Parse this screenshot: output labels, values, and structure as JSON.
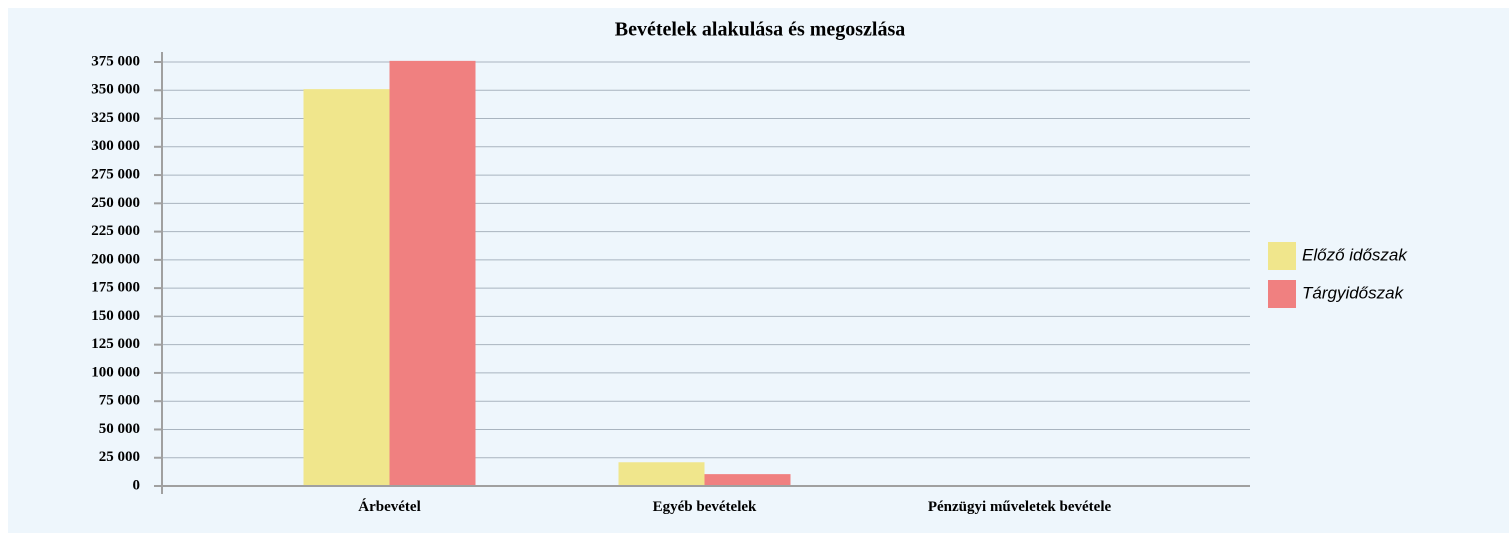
{
  "chart_data": {
    "type": "bar",
    "title": "Bevételek alakulása és megoszlása",
    "categories": [
      "Árbevétel",
      "Egyéb bevételek",
      "Pénzügyi műveletek bevétele"
    ],
    "series": [
      {
        "name": "Előző időszak",
        "color": "#f0e68c",
        "values": [
          351000,
          21000,
          0
        ]
      },
      {
        "name": "Tárgyidőszak",
        "color": "#f08080",
        "values": [
          376000,
          10500,
          0
        ]
      }
    ],
    "ylim": [
      0,
      375000
    ],
    "yticks": [
      0,
      {
        "value": 25000,
        "label": "25 000"
      },
      {
        "value": 50000,
        "label": "50 000"
      },
      {
        "value": 75000,
        "label": "75 000"
      },
      {
        "value": 100000,
        "label": "100 000"
      },
      {
        "value": 125000,
        "label": "125 000"
      },
      {
        "value": 150000,
        "label": "150 000"
      },
      {
        "value": 175000,
        "label": "175 000"
      },
      {
        "value": 200000,
        "label": "200 000"
      },
      {
        "value": 225000,
        "label": "225 000"
      },
      {
        "value": 250000,
        "label": "250 000"
      },
      {
        "value": 275000,
        "label": "275 000"
      },
      {
        "value": 300000,
        "label": "300 000"
      },
      {
        "value": 325000,
        "label": "325 000"
      },
      {
        "value": 350000,
        "label": "350 000"
      },
      {
        "value": 375000,
        "label": "375 000"
      }
    ],
    "grid": true,
    "legend": "right"
  }
}
